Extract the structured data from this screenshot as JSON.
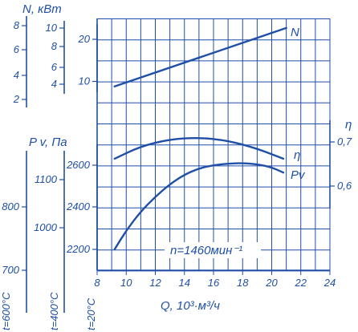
{
  "chart_data": {
    "type": "line",
    "x_axis": {
      "label": "Q, 10³·м³/ч",
      "range": [
        8,
        24
      ],
      "ticks": [
        "8",
        "10",
        "12",
        "14",
        "16",
        "18",
        "20",
        "22",
        "24"
      ]
    },
    "power_axes": {
      "label": "N, кВт",
      "main_ticks": [
        "10",
        "20"
      ],
      "sub_scale_a_ticks": [
        "4",
        "6",
        "8",
        "10"
      ],
      "sub_scale_b_ticks": [
        "2",
        "4",
        "6",
        "8"
      ]
    },
    "pressure_axes": {
      "label": "P v, Па",
      "t20_ticks": [
        "2200",
        "2400",
        "2600"
      ],
      "t400_ticks": [
        "1000",
        "1100"
      ],
      "t600_ticks": [
        "700",
        "800"
      ],
      "t20_label": "t=20°C",
      "t400_label": "t=400°C",
      "t600_label": "t=600°C"
    },
    "efficiency_axis": {
      "label": "η",
      "ticks": [
        "0,6",
        "0,7"
      ]
    },
    "series": [
      {
        "name": "N",
        "x": [
          9.2,
          21
        ],
        "y": [
          8.8,
          22.7
        ]
      },
      {
        "name": "η",
        "x": [
          9.2,
          11,
          13,
          15,
          17,
          19,
          20.8
        ],
        "y": [
          0.662,
          0.69,
          0.706,
          0.71,
          0.703,
          0.685,
          0.662
        ]
      },
      {
        "name": "Pv",
        "x": [
          9.2,
          10,
          11,
          12,
          13,
          14,
          15,
          16,
          17,
          18,
          19,
          20,
          20.8
        ],
        "y": [
          2200,
          2290,
          2380,
          2450,
          2510,
          2555,
          2585,
          2600,
          2608,
          2610,
          2605,
          2590,
          2565
        ]
      }
    ],
    "annotation": "n=1460мин⁻¹",
    "grid": true
  },
  "colors": {
    "ink": "#1f4fa6",
    "background": "#ffffff"
  }
}
